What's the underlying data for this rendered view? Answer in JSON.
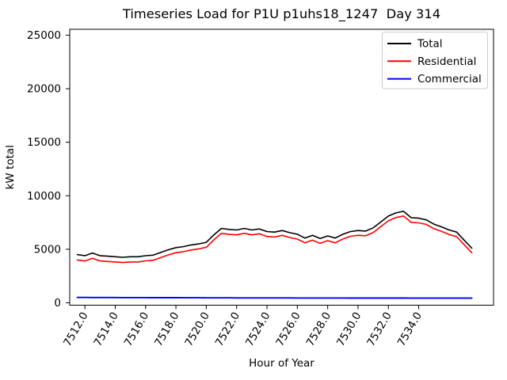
{
  "chart_data": {
    "type": "line",
    "title": "Timeseries Load for P1U p1uhs18_1247  Day 314",
    "xlabel": "Hour of Year",
    "ylabel": "kW total",
    "grid": false,
    "background": "#ffffff",
    "xlim": [
      7511.0,
      7538.93
    ],
    "ylim": [
      -225,
      25550
    ],
    "x_ticks": {
      "values": [
        7512,
        7514,
        7516,
        7518,
        7520,
        7522,
        7524,
        7526,
        7528,
        7530,
        7532,
        7534
      ],
      "labels": [
        "7512.0",
        "7514.0",
        "7516.0",
        "7518.0",
        "7520.0",
        "7522.0",
        "7524.0",
        "7526.0",
        "7528.0",
        "7530.0",
        "7532.0",
        "7534.0"
      ],
      "rotation_deg": 60
    },
    "y_ticks": {
      "values": [
        0,
        5000,
        10000,
        15000,
        20000,
        25000
      ],
      "labels": [
        "0",
        "5000",
        "10000",
        "15000",
        "20000",
        "25000"
      ]
    },
    "x": [
      7511.5,
      7512.0,
      7512.5,
      7513.0,
      7513.5,
      7514.0,
      7514.5,
      7515.0,
      7515.5,
      7516.0,
      7516.5,
      7517.0,
      7517.5,
      7518.0,
      7518.5,
      7519.0,
      7519.5,
      7520.0,
      7520.5,
      7521.0,
      7521.5,
      7522.0,
      7522.5,
      7523.0,
      7523.5,
      7524.0,
      7524.5,
      7525.0,
      7525.5,
      7526.0,
      7526.5,
      7527.0,
      7527.5,
      7528.0,
      7528.5,
      7529.0,
      7529.5,
      7530.0,
      7530.5,
      7531.0,
      7531.5,
      7532.0,
      7532.5,
      7533.0,
      7533.5,
      7534.0,
      7534.5,
      7535.0,
      7535.5,
      7536.0,
      7536.5,
      7537.0,
      7537.5
    ],
    "series": [
      {
        "name": "Total",
        "color": "#000000",
        "values": [
          4500,
          4400,
          4650,
          4400,
          4350,
          4300,
          4250,
          4300,
          4300,
          4400,
          4450,
          4700,
          4950,
          5150,
          5250,
          5400,
          5500,
          5650,
          6350,
          6950,
          6850,
          6800,
          6950,
          6800,
          6900,
          6650,
          6600,
          6750,
          6550,
          6400,
          6050,
          6300,
          6000,
          6250,
          6050,
          6400,
          6650,
          6750,
          6700,
          7000,
          7550,
          8100,
          8400,
          8550,
          7950,
          7900,
          7750,
          7350,
          7100,
          6800,
          6600,
          5850,
          5100
        ]
      },
      {
        "name": "Residential",
        "color": "#ff0000",
        "values": [
          4000,
          3902,
          4154,
          3906,
          3858,
          3810,
          3762,
          3814,
          3816,
          3918,
          3970,
          4222,
          4474,
          4676,
          4778,
          4930,
          5032,
          5184,
          5886,
          6488,
          6390,
          6341,
          6492,
          6343,
          6444,
          6195,
          6146,
          6297,
          6098,
          5949,
          5600,
          5851,
          5552,
          5803,
          5604,
          5955,
          6206,
          6307,
          6258,
          6559,
          7110,
          7661,
          7962,
          8113,
          7514,
          7465,
          7316,
          6917,
          6668,
          6369,
          6170,
          5420,
          4670
        ]
      },
      {
        "name": "Commercial",
        "color": "#0000ff",
        "values": [
          500,
          498,
          496,
          494,
          492,
          490,
          488,
          486,
          484,
          482,
          480,
          478,
          476,
          474,
          472,
          470,
          468,
          466,
          464,
          462,
          460,
          459,
          458,
          457,
          456,
          455,
          454,
          453,
          452,
          451,
          450,
          449,
          448,
          447,
          446,
          445,
          444,
          443,
          442,
          441,
          440,
          439,
          438,
          437,
          436,
          435,
          434,
          433,
          432,
          431,
          430,
          430,
          430
        ]
      }
    ],
    "legend": {
      "position": "upper right",
      "entries": [
        {
          "label": "Total",
          "color": "#000000"
        },
        {
          "label": "Residential",
          "color": "#ff0000"
        },
        {
          "label": "Commercial",
          "color": "#0000ff"
        }
      ]
    }
  }
}
